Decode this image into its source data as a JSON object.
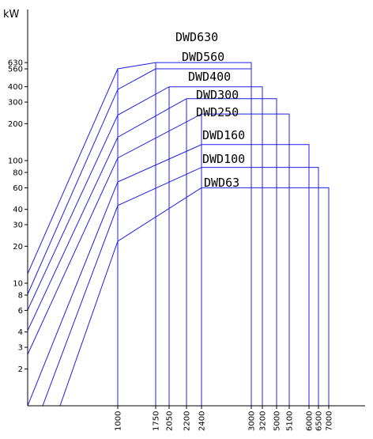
{
  "chart_data": {
    "type": "line",
    "title": "",
    "ylabel": "kW",
    "xlabel": "",
    "scale": "log-log",
    "line_color": "#1f1fe8",
    "axis_color": "#000000",
    "grid": false,
    "y_ticks": [
      2,
      3,
      4,
      6,
      8,
      10,
      20,
      30,
      40,
      60,
      80,
      100,
      200,
      300,
      400,
      560,
      630
    ],
    "x_ticks": [
      1000,
      1750,
      2050,
      2200,
      2400,
      3000,
      3200,
      5000,
      5100,
      6000,
      6500,
      7000
    ],
    "series": [
      {
        "name": "DWD630",
        "points": [
          [
            1000,
            560
          ],
          [
            1750,
            630
          ],
          [
            3000,
            630
          ]
        ]
      },
      {
        "name": "DWD560",
        "points": [
          [
            1000,
            380
          ],
          [
            1750,
            560
          ],
          [
            3000,
            560
          ]
        ]
      },
      {
        "name": "DWD400",
        "points": [
          [
            1000,
            235
          ],
          [
            2050,
            400
          ],
          [
            3200,
            400
          ]
        ]
      },
      {
        "name": "DWD300",
        "points": [
          [
            1000,
            155
          ],
          [
            2200,
            320
          ],
          [
            5000,
            320
          ]
        ]
      },
      {
        "name": "DWD250",
        "points": [
          [
            1000,
            105
          ],
          [
            2400,
            240
          ],
          [
            5100,
            240
          ]
        ]
      },
      {
        "name": "DWD160",
        "points": [
          [
            1000,
            67
          ],
          [
            2400,
            135
          ],
          [
            6000,
            135
          ]
        ]
      },
      {
        "name": "DWD100",
        "points": [
          [
            1000,
            43
          ],
          [
            2400,
            88
          ],
          [
            6500,
            88
          ]
        ]
      },
      {
        "name": "DWD63",
        "points": [
          [
            1000,
            22
          ],
          [
            2400,
            60
          ],
          [
            7000,
            60
          ]
        ]
      }
    ]
  }
}
